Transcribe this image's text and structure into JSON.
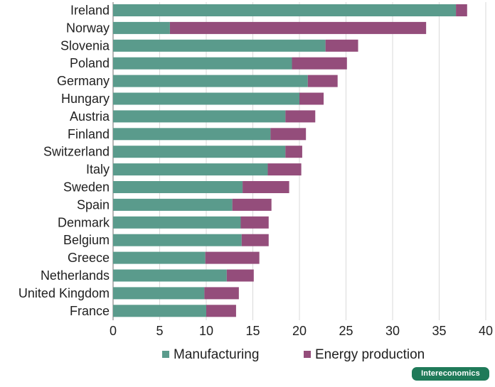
{
  "brand": {
    "name": "Intereconomics",
    "color": "#1f7a59"
  },
  "chart_data": {
    "type": "bar",
    "orientation": "horizontal",
    "stacked": true,
    "categories": [
      "Ireland",
      "Norway",
      "Slovenia",
      "Poland",
      "Germany",
      "Hungary",
      "Austria",
      "Finland",
      "Switzerland",
      "Italy",
      "Sweden",
      "Spain",
      "Denmark",
      "Belgium",
      "Greece",
      "Netherlands",
      "United Kingdom",
      "France"
    ],
    "series": [
      {
        "name": "Manufacturing",
        "color": "#5a9b8c",
        "values": [
          36.8,
          6.1,
          22.8,
          19.2,
          20.9,
          20.0,
          18.5,
          16.9,
          18.5,
          16.6,
          13.9,
          12.8,
          13.7,
          13.8,
          9.9,
          12.2,
          9.8,
          10.0
        ]
      },
      {
        "name": "Energy production",
        "color": "#944d7b",
        "values": [
          1.2,
          27.5,
          3.5,
          5.9,
          3.2,
          2.6,
          3.2,
          3.8,
          1.8,
          3.6,
          5.0,
          4.2,
          3.0,
          2.9,
          5.8,
          2.9,
          3.7,
          3.2
        ]
      }
    ],
    "xlim": [
      0,
      40
    ],
    "xticks": [
      0,
      5,
      10,
      15,
      20,
      25,
      30,
      35,
      40
    ],
    "title": "",
    "xlabel": "",
    "ylabel": "",
    "grid": "vertical",
    "legend_position": "bottom-center"
  }
}
